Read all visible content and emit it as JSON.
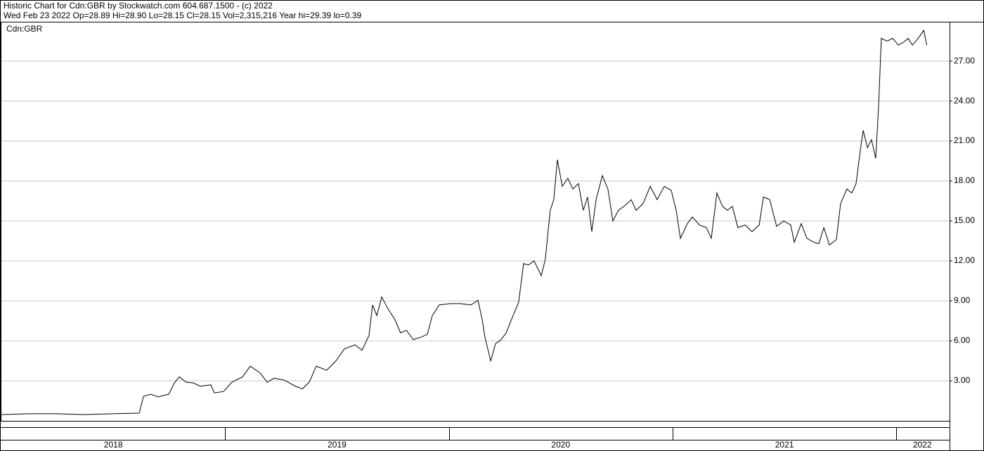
{
  "chart_data": {
    "type": "line",
    "title": "Historic Chart for Cdn:GBR by Stockwatch.com 604.687.1500 - (c) 2022",
    "subtitle": "Wed Feb 23 2022   Op=28.89  Hi=28.90  Lo=28.15  Cl=28.15  Vol=2,315,216  Year hi=29.39  lo=0.39",
    "x": [
      2018.0,
      2018.119,
      2018.245,
      2018.371,
      2018.496,
      2018.616,
      2018.635,
      2018.669,
      2018.701,
      2018.748,
      2018.773,
      2018.795,
      2018.826,
      2018.858,
      2018.889,
      2018.936,
      2018.952,
      2018.993,
      2019.03,
      2019.078,
      2019.112,
      2019.156,
      2019.188,
      2019.219,
      2019.266,
      2019.313,
      2019.345,
      2019.376,
      2019.407,
      2019.454,
      2019.495,
      2019.533,
      2019.58,
      2019.612,
      2019.643,
      2019.659,
      2019.678,
      2019.7,
      2019.728,
      2019.759,
      2019.784,
      2019.81,
      2019.841,
      2019.879,
      2019.904,
      2019.926,
      2019.957,
      2020.004,
      2020.052,
      2020.099,
      2020.13,
      2020.149,
      2020.161,
      2020.187,
      2020.209,
      2020.231,
      2020.256,
      2020.287,
      2020.312,
      2020.334,
      2020.356,
      2020.381,
      2020.413,
      2020.431,
      2020.453,
      2020.469,
      2020.485,
      2020.507,
      2020.532,
      2020.554,
      2020.579,
      2020.601,
      2020.62,
      2020.639,
      2020.658,
      2020.686,
      2020.711,
      2020.733,
      2020.758,
      2020.79,
      2020.815,
      2020.837,
      2020.868,
      2020.9,
      2020.931,
      2020.963,
      2020.994,
      2021.016,
      2021.035,
      2021.066,
      2021.088,
      2021.12,
      2021.151,
      2021.173,
      2021.198,
      2021.223,
      2021.245,
      2021.267,
      2021.292,
      2021.324,
      2021.355,
      2021.387,
      2021.406,
      2021.434,
      2021.465,
      2021.497,
      2021.528,
      2021.544,
      2021.575,
      2021.6,
      2021.632,
      2021.654,
      2021.676,
      2021.701,
      2021.732,
      2021.751,
      2021.779,
      2021.801,
      2021.82,
      2021.839,
      2021.852,
      2021.871,
      2021.889,
      2021.908,
      2021.921,
      2021.933,
      2021.959,
      2021.984,
      2022.009,
      2022.031,
      2022.053,
      2022.072,
      2022.097,
      2022.123,
      2022.136
    ],
    "series": [
      {
        "name": "Cdn:GBR",
        "color": "#000000",
        "values": [
          0.47,
          0.53,
          0.53,
          0.47,
          0.53,
          0.58,
          1.84,
          2.0,
          1.8,
          2.0,
          2.84,
          3.3,
          2.9,
          2.84,
          2.6,
          2.7,
          2.1,
          2.2,
          2.9,
          3.3,
          4.1,
          3.6,
          2.9,
          3.2,
          3.05,
          2.6,
          2.4,
          2.9,
          4.1,
          3.8,
          4.5,
          5.4,
          5.7,
          5.3,
          6.4,
          8.7,
          7.9,
          9.3,
          8.4,
          7.6,
          6.6,
          6.8,
          6.1,
          6.3,
          6.5,
          7.9,
          8.7,
          8.8,
          8.8,
          8.7,
          9.05,
          7.6,
          6.3,
          4.5,
          5.8,
          6.05,
          6.6,
          7.9,
          8.9,
          11.8,
          11.7,
          12.0,
          10.9,
          12.1,
          15.8,
          16.6,
          19.6,
          17.6,
          18.2,
          17.4,
          17.8,
          15.8,
          16.8,
          14.2,
          16.6,
          18.4,
          17.4,
          15.0,
          15.8,
          16.2,
          16.6,
          15.8,
          16.3,
          17.6,
          16.6,
          17.6,
          17.3,
          15.8,
          13.7,
          14.8,
          15.3,
          14.7,
          14.5,
          13.7,
          17.1,
          16.1,
          15.8,
          16.1,
          14.5,
          14.7,
          14.2,
          14.7,
          16.8,
          16.6,
          14.6,
          15.0,
          14.7,
          13.4,
          14.8,
          13.7,
          13.4,
          13.3,
          14.5,
          13.2,
          13.6,
          16.3,
          17.4,
          17.1,
          17.8,
          20.3,
          21.8,
          20.5,
          21.1,
          19.7,
          23.7,
          28.7,
          28.5,
          28.7,
          28.2,
          28.4,
          28.7,
          28.2,
          28.7,
          29.3,
          28.2
        ]
      }
    ],
    "xlim": [
      2018.0,
      2022.238
    ],
    "xticks": [
      {
        "value": 2018.5,
        "label": "2018"
      },
      {
        "value": 2019.5,
        "label": "2019"
      },
      {
        "value": 2020.5,
        "label": "2020"
      },
      {
        "value": 2021.5,
        "label": "2021"
      },
      {
        "value": 2022.116,
        "label": "2022"
      }
    ],
    "year_dividers": [
      2019,
      2020,
      2021,
      2022
    ],
    "ylim": [
      0,
      29.9
    ],
    "yticks": [
      {
        "value": 3,
        "label": "3.00"
      },
      {
        "value": 6,
        "label": "6.00"
      },
      {
        "value": 9,
        "label": "9.00"
      },
      {
        "value": 12,
        "label": "12.00"
      },
      {
        "value": 15,
        "label": "15.00"
      },
      {
        "value": 18,
        "label": "18.00"
      },
      {
        "value": 21,
        "label": "21.00"
      },
      {
        "value": 24,
        "label": "24.00"
      },
      {
        "value": 27,
        "label": "27.00"
      }
    ],
    "grid": true
  }
}
